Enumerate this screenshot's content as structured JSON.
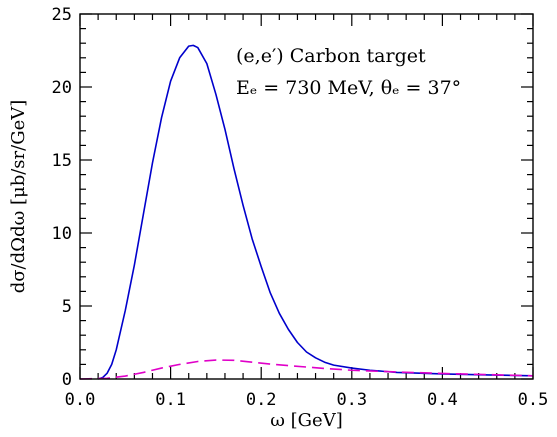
{
  "chart_data": {
    "type": "line",
    "xlabel": "ω [GeV]",
    "ylabel": "dσ/dΩdω [μb/sr/GeV]",
    "xlim": [
      0,
      0.5
    ],
    "ylim": [
      0,
      25
    ],
    "x_ticks": [
      "0.0",
      "0.1",
      "0.2",
      "0.3",
      "0.4",
      "0.5"
    ],
    "y_ticks": [
      "0",
      "5",
      "10",
      "15",
      "20",
      "25"
    ],
    "annotations": [
      "(e,e′) Carbon target",
      "Eₑ = 730 MeV, θₑ = 37°"
    ],
    "series": [
      {
        "style": "solid",
        "color": "#0000cc",
        "x": [
          0.02,
          0.025,
          0.03,
          0.035,
          0.04,
          0.05,
          0.06,
          0.07,
          0.08,
          0.09,
          0.1,
          0.11,
          0.12,
          0.125,
          0.13,
          0.14,
          0.15,
          0.16,
          0.17,
          0.18,
          0.19,
          0.2,
          0.21,
          0.22,
          0.23,
          0.24,
          0.25,
          0.26,
          0.27,
          0.28,
          0.3,
          0.32,
          0.35,
          0.4,
          0.45,
          0.5
        ],
        "y": [
          0.0,
          0.1,
          0.4,
          1.0,
          2.0,
          4.7,
          7.8,
          11.3,
          14.8,
          17.9,
          20.4,
          22.0,
          22.8,
          22.85,
          22.7,
          21.6,
          19.5,
          17.1,
          14.4,
          11.9,
          9.6,
          7.7,
          5.9,
          4.5,
          3.4,
          2.5,
          1.85,
          1.45,
          1.15,
          0.95,
          0.75,
          0.6,
          0.45,
          0.35,
          0.28,
          0.22
        ]
      },
      {
        "style": "dashed",
        "color": "#e000c8",
        "x": [
          0.0,
          0.03,
          0.05,
          0.07,
          0.09,
          0.11,
          0.13,
          0.15,
          0.17,
          0.19,
          0.21,
          0.23,
          0.25,
          0.27,
          0.3,
          0.35,
          0.4,
          0.45,
          0.5
        ],
        "y": [
          0.0,
          0.05,
          0.2,
          0.45,
          0.75,
          1.0,
          1.2,
          1.3,
          1.28,
          1.15,
          1.02,
          0.92,
          0.82,
          0.72,
          0.6,
          0.48,
          0.38,
          0.3,
          0.22
        ]
      }
    ]
  }
}
